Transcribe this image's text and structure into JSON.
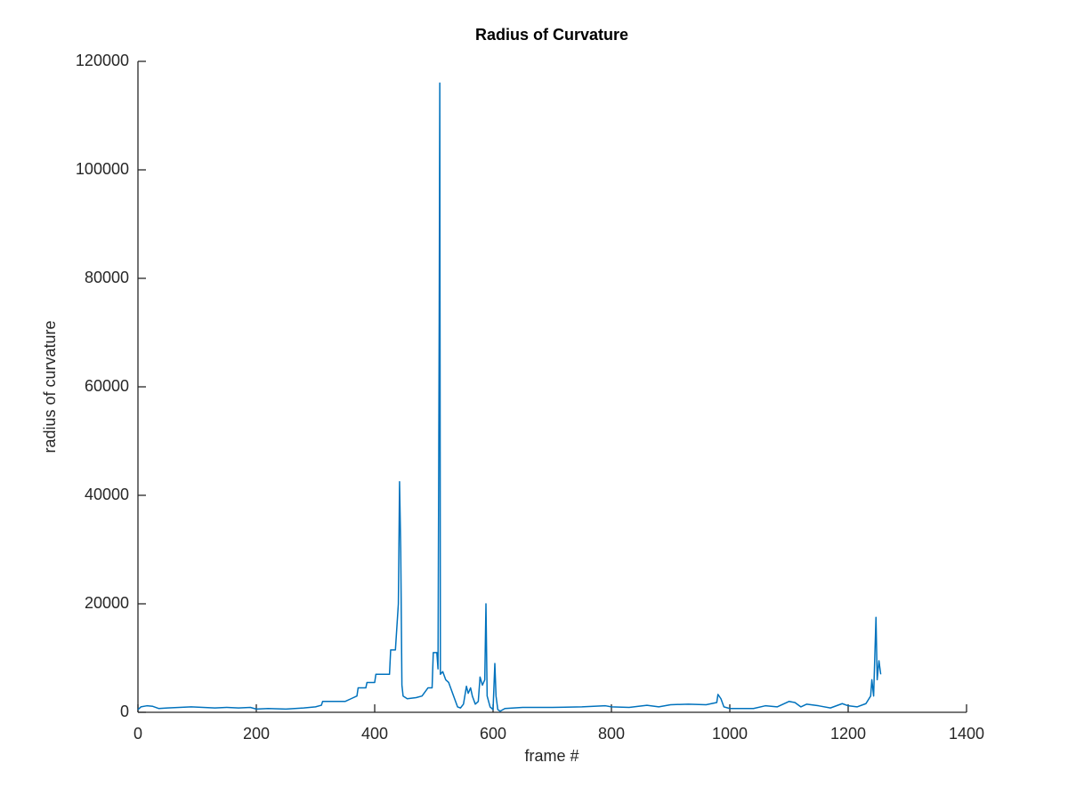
{
  "chart_data": {
    "type": "line",
    "title": "Radius of Curvature",
    "x_label": "frame #",
    "y_label": "radius of curvature",
    "x": [
      0,
      5,
      15,
      25,
      35,
      50,
      70,
      90,
      110,
      130,
      150,
      170,
      190,
      200,
      220,
      250,
      280,
      300,
      310,
      312,
      350,
      360,
      370,
      372,
      385,
      387,
      400,
      402,
      425,
      427,
      435,
      440,
      442,
      444,
      446,
      448,
      455,
      470,
      480,
      490,
      497,
      499,
      505,
      507,
      509,
      510,
      511,
      515,
      520,
      525,
      530,
      535,
      540,
      545,
      550,
      555,
      558,
      562,
      565,
      570,
      575,
      578,
      582,
      586,
      588,
      590,
      595,
      600,
      603,
      605,
      608,
      612,
      620,
      650,
      700,
      750,
      790,
      800,
      830,
      860,
      880,
      900,
      930,
      960,
      978,
      980,
      985,
      990,
      1000,
      1040,
      1060,
      1080,
      1100,
      1110,
      1120,
      1130,
      1150,
      1170,
      1190,
      1200,
      1215,
      1230,
      1238,
      1240,
      1243,
      1247,
      1249,
      1252,
      1255
    ],
    "values": [
      500,
      1000,
      1200,
      1100,
      700,
      800,
      900,
      1000,
      900,
      800,
      900,
      800,
      900,
      600,
      700,
      600,
      800,
      1000,
      1300,
      2000,
      2000,
      2500,
      3000,
      4500,
      4500,
      5500,
      5500,
      7000,
      7000,
      11500,
      11500,
      20000,
      42500,
      30000,
      5000,
      3000,
      2500,
      2700,
      3000,
      4500,
      4500,
      11000,
      11000,
      8000,
      72000,
      116000,
      7000,
      7500,
      6000,
      5500,
      4000,
      2500,
      1000,
      800,
      1500,
      4800,
      3500,
      4500,
      3000,
      1500,
      2000,
      6500,
      5000,
      6000,
      20000,
      3000,
      1000,
      500,
      9000,
      3000,
      500,
      200,
      700,
      900,
      900,
      1000,
      1200,
      1000,
      900,
      1300,
      1000,
      1400,
      1500,
      1400,
      1800,
      3300,
      2500,
      1000,
      700,
      700,
      1200,
      1000,
      2000,
      1800,
      1000,
      1500,
      1200,
      800,
      1600,
      1200,
      1000,
      1600,
      3000,
      6000,
      3000,
      17500,
      6000,
      9500,
      7000
    ],
    "color": "#0072bd",
    "xlim": [
      0,
      1400
    ],
    "xticks": [
      0,
      200,
      400,
      600,
      800,
      1000,
      1200,
      1400
    ],
    "ylim": [
      0,
      120000
    ],
    "yticks": [
      0,
      20000,
      40000,
      60000,
      80000,
      100000,
      120000
    ]
  }
}
